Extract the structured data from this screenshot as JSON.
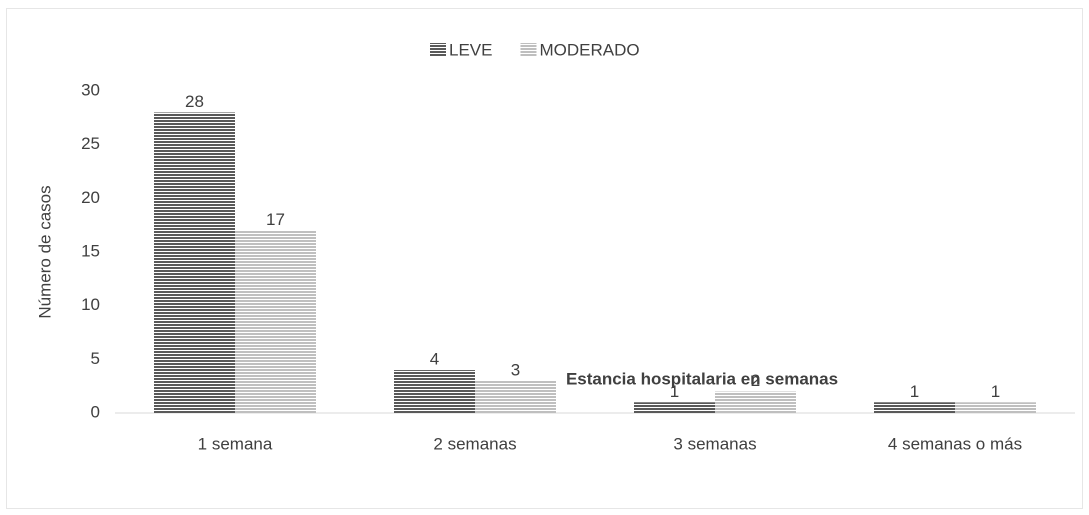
{
  "chart_data": {
    "type": "bar",
    "x_label": "Estancia hospitalaria en semanas",
    "y_label": "Número de casos",
    "categories": [
      "1 semana",
      "2 semanas",
      "3 semanas",
      "4 semanas o más"
    ],
    "series": [
      {
        "name": "LEVE",
        "color": "#595959",
        "values": [
          28,
          4,
          1,
          1
        ]
      },
      {
        "name": "MODERADO",
        "color": "#bfbfbf",
        "values": [
          17,
          3,
          2,
          1
        ]
      }
    ],
    "ylim": [
      0,
      30
    ],
    "yticks": [
      0,
      5,
      10,
      15,
      20,
      25,
      30
    ],
    "legend": "top"
  }
}
